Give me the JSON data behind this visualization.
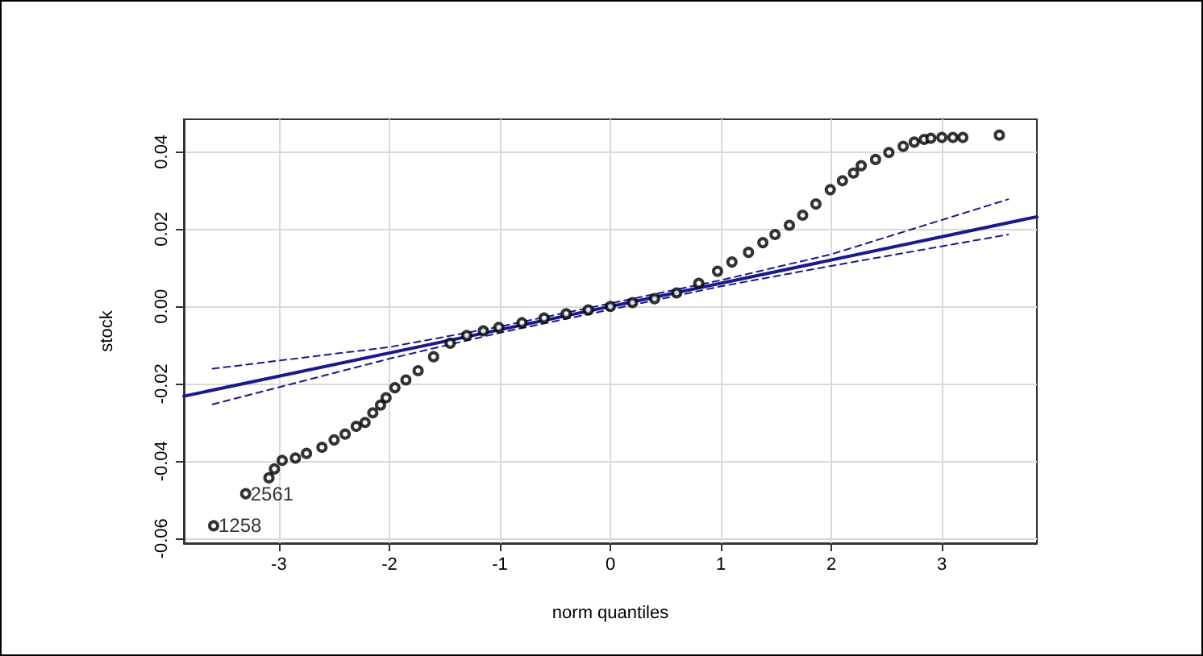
{
  "chart_data": {
    "type": "scatter",
    "xlabel": "norm quantiles",
    "ylabel": "stock",
    "xlim": [
      -3.86,
      3.86
    ],
    "ylim": [
      -0.0612,
      0.0484
    ],
    "xticks": [
      -3,
      -2,
      -1,
      0,
      1,
      2,
      3
    ],
    "yticks": [
      {
        "value": -0.06,
        "label": "-0.06"
      },
      {
        "value": -0.04,
        "label": "-0.04"
      },
      {
        "value": -0.02,
        "label": "-0.02"
      },
      {
        "value": 0,
        "label": "0.00"
      },
      {
        "value": 0.02,
        "label": "0.02"
      },
      {
        "value": 0.04,
        "label": "0.04"
      }
    ],
    "grid": true,
    "series": [
      {
        "marker": "circle",
        "color": "#000000",
        "x": [
          -3.59,
          -3.3,
          -3.09,
          -3.04,
          -2.97,
          -2.85,
          -2.75,
          -2.61,
          -2.5,
          -2.4,
          -2.3,
          -2.22,
          -2.15,
          -2.08,
          -2.03,
          -1.95,
          -1.85,
          -1.74,
          -1.6,
          -1.45,
          -1.3,
          -1.15,
          -1.01,
          -0.8,
          -0.6,
          -0.4,
          -0.2,
          0,
          0.2,
          0.4,
          0.6,
          0.8,
          0.97,
          1.1,
          1.25,
          1.38,
          1.49,
          1.62,
          1.74,
          1.86,
          1.99,
          2.1,
          2.2,
          2.27,
          2.4,
          2.52,
          2.65,
          2.75,
          2.84,
          2.9,
          3.0,
          3.1,
          3.19,
          3.52
        ],
        "values": [
          -0.0567,
          -0.0484,
          -0.0443,
          -0.042,
          -0.0398,
          -0.0392,
          -0.038,
          -0.0364,
          -0.0345,
          -0.033,
          -0.031,
          -0.03,
          -0.0275,
          -0.0255,
          -0.0236,
          -0.021,
          -0.019,
          -0.0166,
          -0.013,
          -0.0095,
          -0.0075,
          -0.0063,
          -0.0054,
          -0.0042,
          -0.003,
          -0.0019,
          -0.0009,
          0,
          0.001,
          0.002,
          0.0035,
          0.006,
          0.0091,
          0.0115,
          0.014,
          0.0165,
          0.0186,
          0.021,
          0.0236,
          0.0265,
          0.0302,
          0.0325,
          0.0345,
          0.0364,
          0.038,
          0.0398,
          0.0414,
          0.0425,
          0.0432,
          0.0435,
          0.0437,
          0.0437,
          0.0437,
          0.0443
        ]
      },
      {
        "type": "line",
        "color": "#1a1a8c",
        "line_style": "solid",
        "marker": "none",
        "x": [
          -3.86,
          3.86
        ],
        "values": [
          -0.0232,
          0.0232
        ]
      },
      {
        "type": "line",
        "color": "#1a1a8c",
        "line_style": "dashed",
        "marker": "none",
        "x": [
          -3.6,
          -2,
          -1,
          0,
          1,
          2,
          3.6
        ],
        "values": [
          -0.0161,
          -0.0105,
          -0.0052,
          0.0008,
          0.0068,
          0.0135,
          0.0277
        ]
      },
      {
        "type": "line",
        "color": "#1a1a8c",
        "line_style": "dashed",
        "marker": "none",
        "x": [
          -3.6,
          -2,
          -1,
          0,
          1,
          2,
          3.6
        ],
        "values": [
          -0.0253,
          -0.0135,
          -0.0068,
          -0.0008,
          0.0052,
          0.0105,
          0.0186
        ]
      }
    ],
    "annotations": [
      {
        "text": "1258",
        "x": -3.59,
        "y": -0.0567
      },
      {
        "text": "2561",
        "x": -3.3,
        "y": -0.0484
      }
    ]
  }
}
